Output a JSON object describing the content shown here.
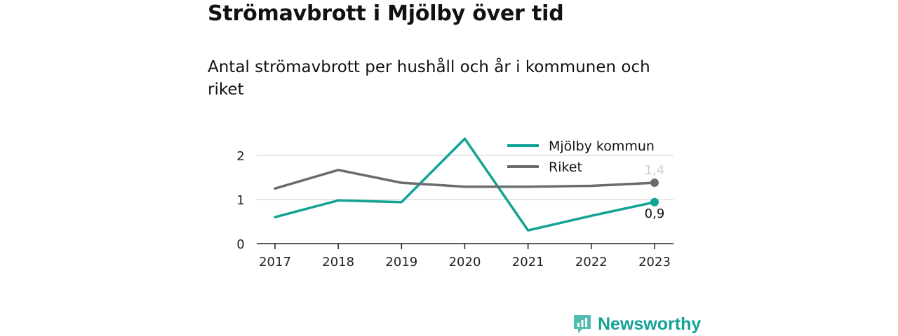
{
  "title": "Strömavbrott i Mjölby över tid",
  "subtitle": "Antal strömavbrott per hushåll och år i kommunen och riket",
  "brand": "Newsworthy",
  "chart_data": {
    "type": "line",
    "x": [
      "2017",
      "2018",
      "2019",
      "2020",
      "2021",
      "2022",
      "2023"
    ],
    "series": [
      {
        "name": "Mjölby kommun",
        "color": "#12a394",
        "values": [
          0.6,
          0.98,
          0.94,
          2.38,
          0.3,
          0.63,
          0.94
        ],
        "end_label": "0,9"
      },
      {
        "name": "Riket",
        "color": "#6b6a70",
        "values": [
          1.25,
          1.67,
          1.38,
          1.29,
          1.29,
          1.31,
          1.38
        ],
        "end_label": "1,4"
      }
    ],
    "yticks": [
      0,
      1,
      2
    ],
    "ylim": [
      0,
      2.4
    ],
    "grid": true,
    "legend": "top-right"
  }
}
